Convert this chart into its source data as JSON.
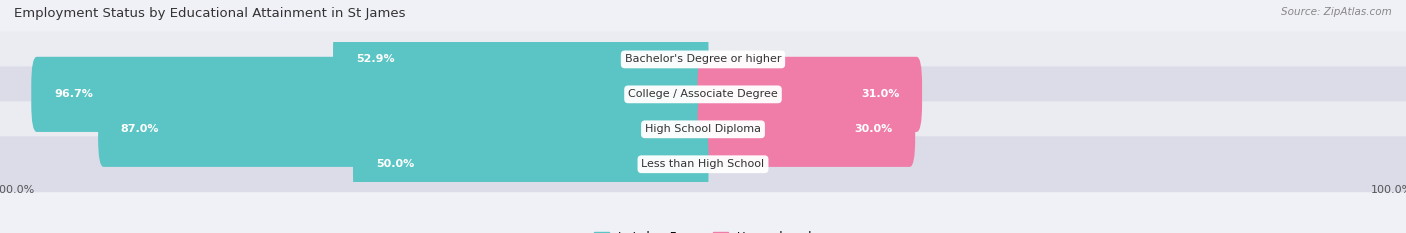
{
  "title": "Employment Status by Educational Attainment in St James",
  "source": "Source: ZipAtlas.com",
  "categories": [
    "Less than High School",
    "High School Diploma",
    "College / Associate Degree",
    "Bachelor's Degree or higher"
  ],
  "labor_force": [
    50.0,
    87.0,
    96.7,
    52.9
  ],
  "unemployed": [
    0.0,
    30.0,
    31.0,
    0.0
  ],
  "labor_force_color": "#5bc4c4",
  "unemployed_color": "#f07ca8",
  "row_bg_colors": [
    "#ebebf2",
    "#dcdce8"
  ],
  "fig_bg_color": "#f0f0f7",
  "axis_max": 100.0,
  "label_fontsize": 8.0,
  "title_fontsize": 9.5,
  "source_fontsize": 7.5,
  "legend_fontsize": 8.5,
  "bar_height": 0.55,
  "lf_label_threshold": 15.0
}
